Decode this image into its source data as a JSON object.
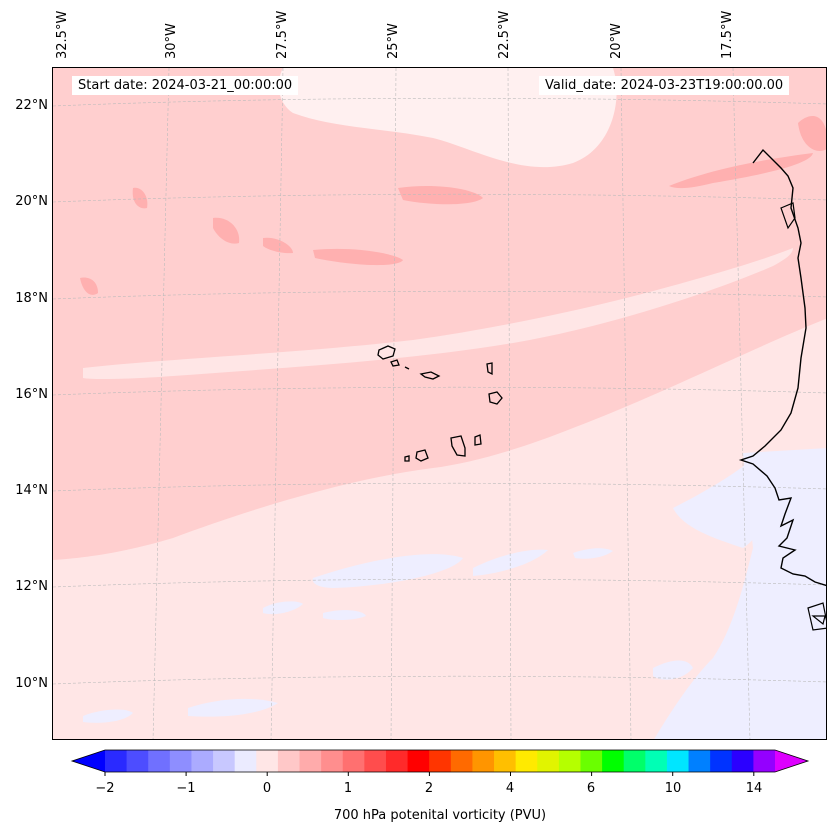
{
  "map": {
    "start_date": "Start date: 2024-03-21_00:00:00",
    "valid_date": "Valid_date: 2024-03-23T19:00:00.00",
    "lon_labels": [
      "32.5°W",
      "30°W",
      "27.5°W",
      "25°W",
      "22.5°W",
      "20°W",
      "17.5°W"
    ],
    "lat_labels": [
      "22°N",
      "20°N",
      "18°N",
      "16°N",
      "14°N",
      "12°N",
      "10°N"
    ],
    "colors": {
      "background": "#ffe6e6",
      "band_light": "#ffcfcf",
      "band_mid": "#ffb3b3",
      "band_white": "#fff2f2",
      "negative_pale": "#eeeeff",
      "coast": "#000000",
      "grid": "#bbbbbb"
    }
  },
  "colorbar": {
    "title": "700 hPa potenital vorticity (PVU)",
    "tick_labels": [
      "−2",
      "−1",
      "0",
      "1",
      "2",
      "4",
      "6",
      "10",
      "14"
    ],
    "colors": [
      "#0000ff",
      "#2a2aff",
      "#4d4dff",
      "#7070ff",
      "#8e8eff",
      "#ababff",
      "#c8c8ff",
      "#ebebff",
      "#ffe6e6",
      "#ffc8c8",
      "#ffabab",
      "#ff8e8e",
      "#ff7070",
      "#ff4d4d",
      "#ff2a2a",
      "#ff0000",
      "#ff3500",
      "#ff6a00",
      "#ff9500",
      "#ffbf00",
      "#ffea00",
      "#e1f400",
      "#b5ff00",
      "#6aff00",
      "#00ff00",
      "#00ff6a",
      "#00ffb5",
      "#00e6ff",
      "#0080ff",
      "#0033ff",
      "#2b00ff",
      "#9400ff",
      "#dd00ff"
    ]
  }
}
